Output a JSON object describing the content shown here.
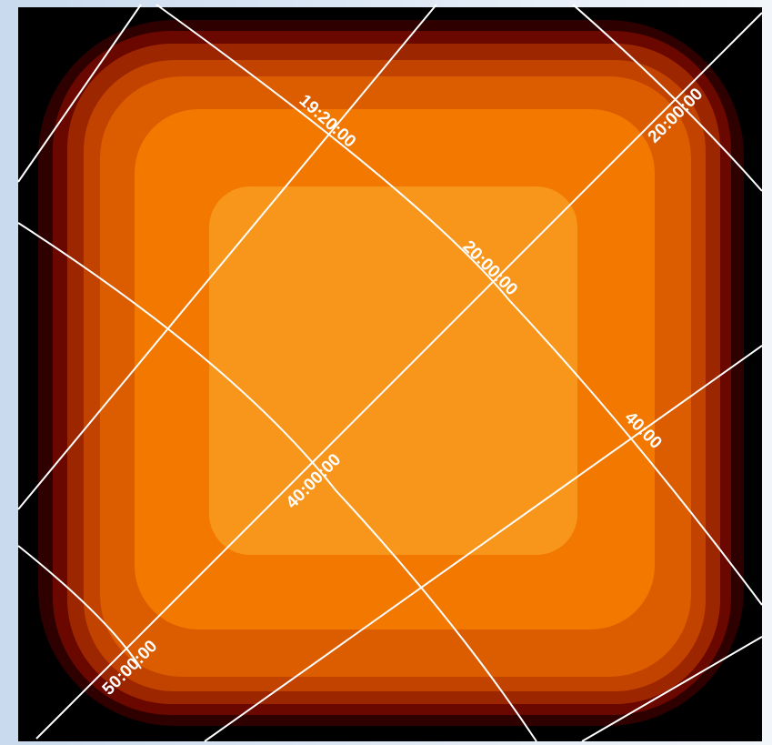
{
  "grid_labels": [
    "19:20:00",
    "20:00:00",
    "20:00:00",
    "40:00",
    "40:00:00",
    "50:00:00"
  ]
}
